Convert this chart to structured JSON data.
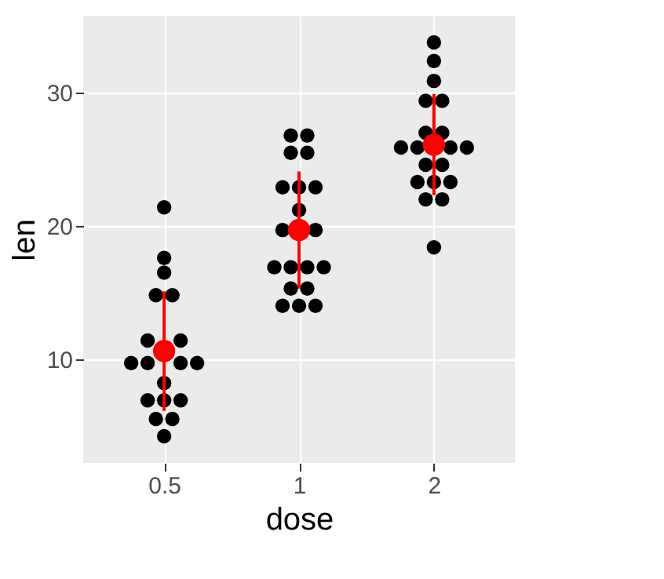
{
  "chart_data": {
    "type": "scatter",
    "xlabel": "dose",
    "ylabel": "len",
    "categories": [
      "0.5",
      "1",
      "2"
    ],
    "series": [
      {
        "color": "#000000",
        "x": [
          "0.5",
          "0.5",
          "0.5",
          "0.5",
          "0.5",
          "0.5",
          "0.5",
          "0.5",
          "0.5",
          "0.5",
          "0.5",
          "0.5",
          "0.5",
          "0.5",
          "0.5",
          "0.5",
          "0.5",
          "0.5",
          "0.5",
          "0.5",
          "1",
          "1",
          "1",
          "1",
          "1",
          "1",
          "1",
          "1",
          "1",
          "1",
          "1",
          "1",
          "1",
          "1",
          "1",
          "1",
          "1",
          "1",
          "1",
          "1",
          "2",
          "2",
          "2",
          "2",
          "2",
          "2",
          "2",
          "2",
          "2",
          "2",
          "2",
          "2",
          "2",
          "2",
          "2",
          "2",
          "2",
          "2",
          "2",
          "2"
        ],
        "values": [
          21.4,
          17.6,
          16.5,
          14.8,
          14.8,
          11.4,
          null,
          11.4,
          9.7,
          9.7,
          null,
          9.7,
          9.7,
          8.2,
          6.9,
          6.9,
          6.9,
          5.5,
          5.5,
          4.2,
          26.8,
          26.8,
          25.5,
          25.5,
          22.9,
          22.9,
          22.9,
          21.2,
          19.7,
          null,
          19.7,
          16.9,
          16.9,
          16.9,
          16.9,
          15.3,
          15.3,
          14.0,
          14.0,
          14.0,
          33.8,
          32.4,
          30.9,
          29.4,
          29.4,
          27.0,
          27.0,
          25.9,
          25.9,
          null,
          25.9,
          25.9,
          24.6,
          24.6,
          23.3,
          23.3,
          23.3,
          22.0,
          22.0,
          18.4
        ]
      },
      {
        "color": "#ff0000",
        "x": [
          "0.5",
          "1",
          "2"
        ],
        "values": [
          10.6,
          19.7,
          26.1
        ],
        "errors": [
          4.5,
          4.4,
          3.8
        ]
      }
    ],
    "ylim": [
      2.2,
      35.8
    ],
    "yticks": [
      10,
      20,
      30
    ],
    "grid": true,
    "legend": false,
    "marker": "circle"
  }
}
